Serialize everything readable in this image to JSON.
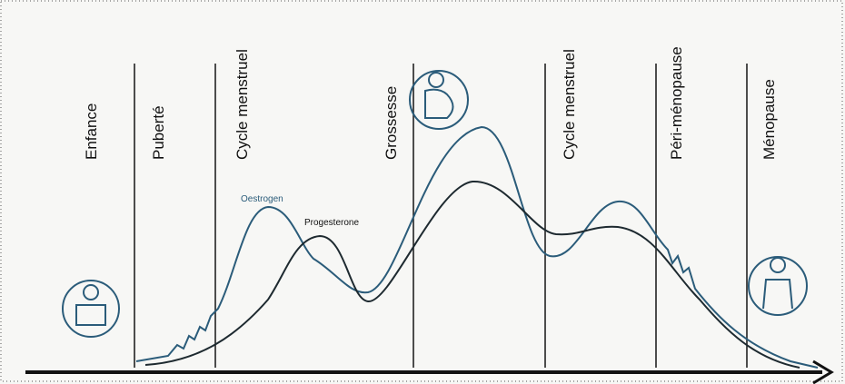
{
  "stages": [
    "Enfance",
    "Puberté",
    "Cycle menstruel",
    "Grossesse",
    "Cycle menstruel",
    "Péri-ménopause",
    "Ménopause"
  ],
  "curves": {
    "oestrogen": "Oestrogen",
    "progesterone": "Progesterone"
  }
}
